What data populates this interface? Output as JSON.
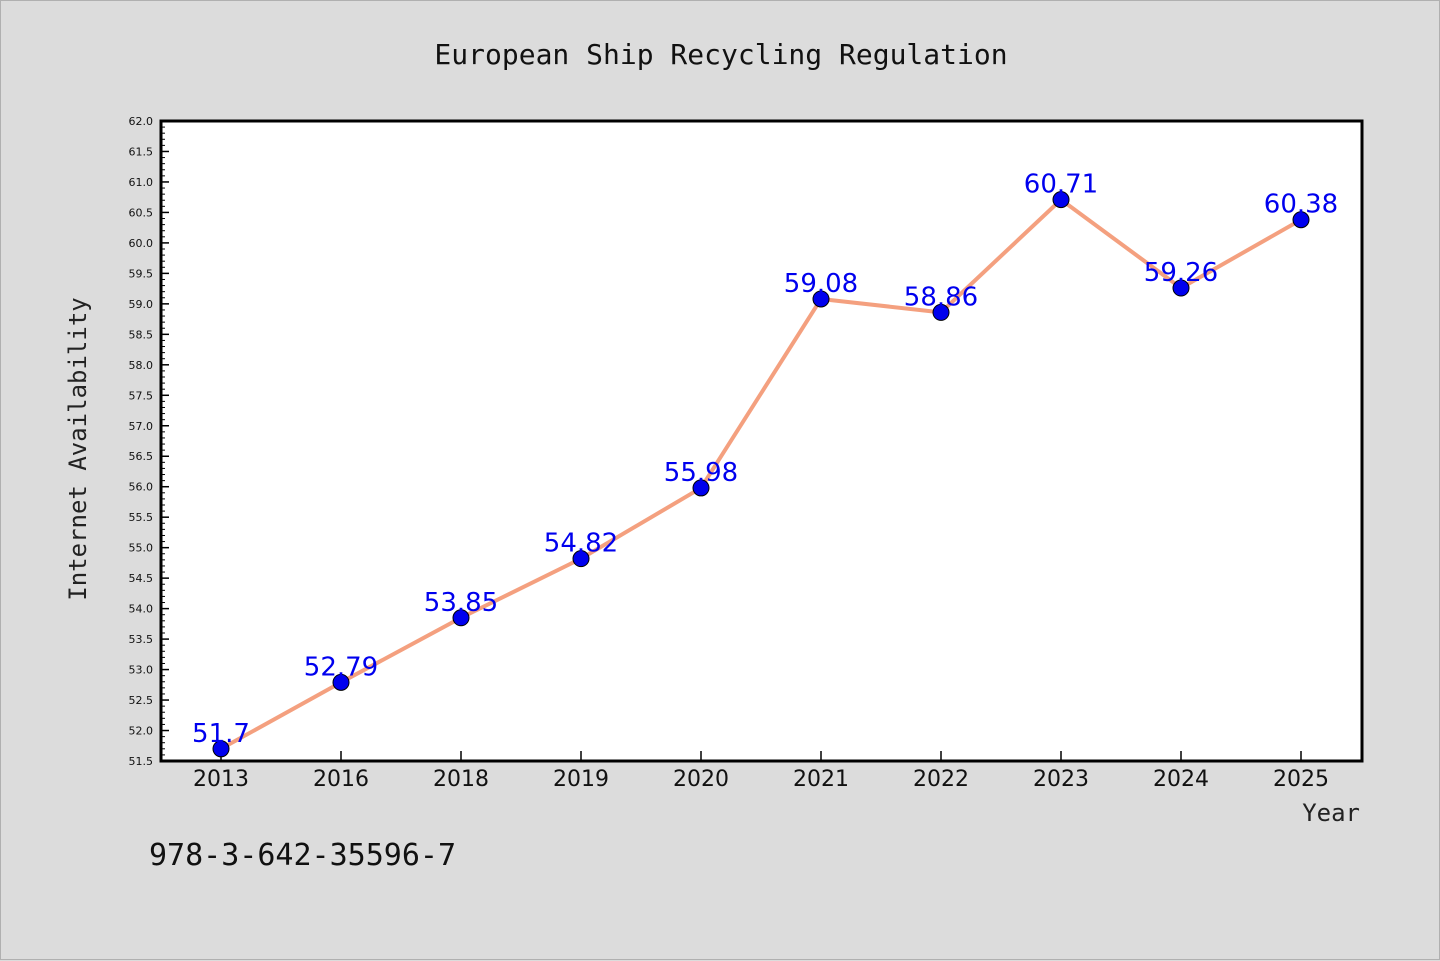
{
  "chart_data": {
    "type": "line",
    "title": "European Ship Recycling Regulation",
    "xlabel": "Year",
    "ylabel": "Internet Availability",
    "categories": [
      "2013",
      "2016",
      "2018",
      "2019",
      "2020",
      "2021",
      "2022",
      "2023",
      "2024",
      "2025"
    ],
    "series": [
      {
        "values": [
          51.7,
          52.79,
          53.85,
          54.82,
          55.98,
          59.08,
          58.86,
          60.71,
          59.26,
          60.38
        ],
        "data_labels": [
          "51.7",
          "52.79",
          "53.85",
          "54.82",
          "55.98",
          "59.08",
          "58.86",
          "60.71",
          "59.26",
          "60.38"
        ],
        "line_color": "#f4a07f",
        "marker_color": "#0000ee"
      }
    ],
    "ylim": [
      51.5,
      62.0
    ],
    "yticks": [
      "51.5",
      "52.0",
      "52.5",
      "53.0",
      "53.5",
      "54.0",
      "54.5",
      "55.0",
      "55.5",
      "56.0",
      "56.5",
      "57.0",
      "57.5",
      "58.0",
      "58.5",
      "59.0",
      "59.5",
      "60.0",
      "60.5",
      "61.0",
      "61.5",
      "62.0"
    ],
    "grid": false,
    "legend": "none",
    "background": "#dcdcdc",
    "plot_background": "#ffffff"
  },
  "footer": {
    "isbn": "978-3-642-35596-7"
  }
}
